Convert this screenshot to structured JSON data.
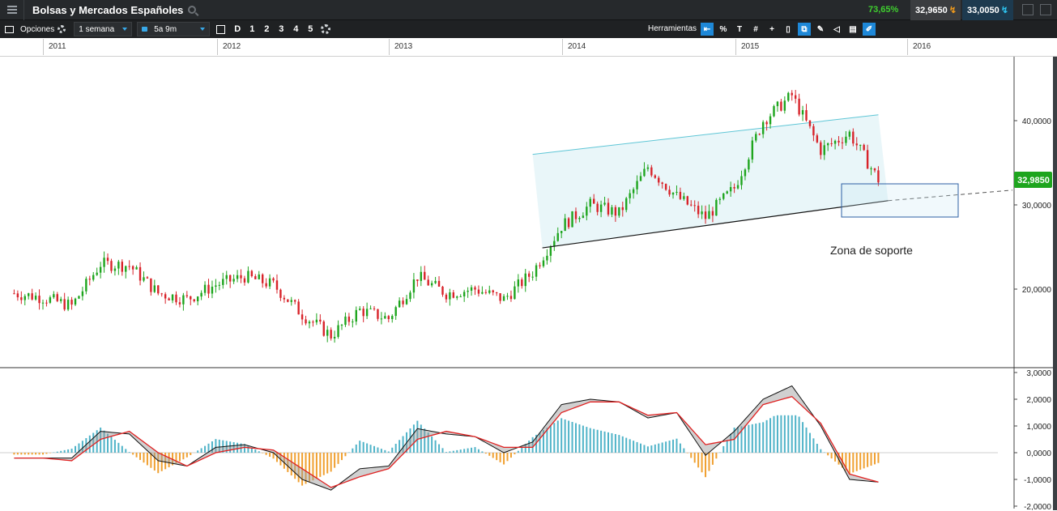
{
  "header": {
    "title": "Bolsas y Mercados Españoles",
    "change_pct": "73,65%",
    "sell_price": "32,9650",
    "buy_price": "33,0050"
  },
  "toolbar": {
    "options_label": "Opciones",
    "interval_value": "1 semana",
    "range_value": "5a 9m",
    "buttons": [
      "D",
      "1",
      "2",
      "3",
      "4",
      "5"
    ],
    "tools_label": "Herramientas",
    "tool_percent": "%"
  },
  "timeaxis": {
    "years": [
      "2011",
      "2012",
      "2013",
      "2014",
      "2015",
      "2016"
    ]
  },
  "annotation": {
    "support_label": "Zona de soporte"
  },
  "chart_data": [
    {
      "type": "line",
      "title": "",
      "style": "candlestick",
      "last_value_label": "32,9850",
      "y_ticks": [
        "20,0000",
        "30,0000",
        "40,0000"
      ],
      "ylim": [
        12,
        47
      ],
      "x": [
        "2010-11",
        "2011-01",
        "2011-03",
        "2011-05",
        "2011-07",
        "2011-09",
        "2011-11",
        "2012-01",
        "2012-03",
        "2012-05",
        "2012-07",
        "2012-09",
        "2012-11",
        "2013-01",
        "2013-03",
        "2013-05",
        "2013-07",
        "2013-09",
        "2013-11",
        "2014-01",
        "2014-03",
        "2014-05",
        "2014-07",
        "2014-09",
        "2014-11",
        "2015-01",
        "2015-03",
        "2015-05",
        "2015-07",
        "2015-09",
        "2015-11"
      ],
      "close": [
        19.5,
        19.0,
        18.0,
        23.0,
        22.8,
        19.5,
        18.8,
        20.5,
        21.5,
        20.5,
        17.0,
        14.5,
        17.5,
        16.5,
        21.5,
        19.5,
        20.0,
        18.8,
        22.0,
        27.5,
        30.0,
        29.0,
        34.5,
        31.0,
        28.5,
        32.0,
        40.0,
        43.0,
        36.5,
        38.5,
        33.0
      ],
      "support_line": {
        "from": [
          "2013-11",
          24.9
        ],
        "to": [
          "2015-11",
          30.5
        ]
      },
      "channel_top": {
        "from": [
          "2013-11",
          36.0
        ],
        "to": [
          "2015-11",
          40.7
        ]
      }
    },
    {
      "type": "line",
      "style": "macd",
      "series": [
        {
          "values": [
            -0.2,
            -0.2,
            -0.2,
            0.8,
            0.7,
            -0.3,
            -0.5,
            0.2,
            0.3,
            0.0,
            -1.0,
            -1.4,
            -0.6,
            -0.5,
            0.9,
            0.7,
            0.6,
            0.0,
            0.4,
            1.8,
            2.0,
            1.9,
            1.3,
            1.5,
            -0.1,
            0.8,
            2.0,
            2.5,
            1.0,
            -1.0,
            -1.1
          ]
        },
        {
          "values": [
            -0.2,
            -0.2,
            -0.3,
            0.5,
            0.8,
            0.0,
            -0.5,
            0.0,
            0.2,
            0.1,
            -0.6,
            -1.3,
            -0.9,
            -0.6,
            0.5,
            0.8,
            0.6,
            0.2,
            0.2,
            1.5,
            1.9,
            1.9,
            1.4,
            1.5,
            0.3,
            0.5,
            1.8,
            2.1,
            1.1,
            -0.8,
            -1.1
          ]
        }
      ],
      "y_ticks": [
        "3,0000",
        "2,0000",
        "1,0000",
        "0,0000",
        "-1,0000",
        "-2,0000"
      ],
      "ylim": [
        -2,
        3
      ]
    }
  ],
  "colors": {
    "up_candle": "#1ea51e",
    "down_candle": "#d8232a",
    "channel_fill": "#e9f6f9",
    "channel_line": "#5fc6d6",
    "macd_pos_hist": "#4fb3c8",
    "macd_neg_hist": "#f0a030",
    "macd_signal": "#e02020",
    "last_price_bg": "#1ea51e"
  }
}
